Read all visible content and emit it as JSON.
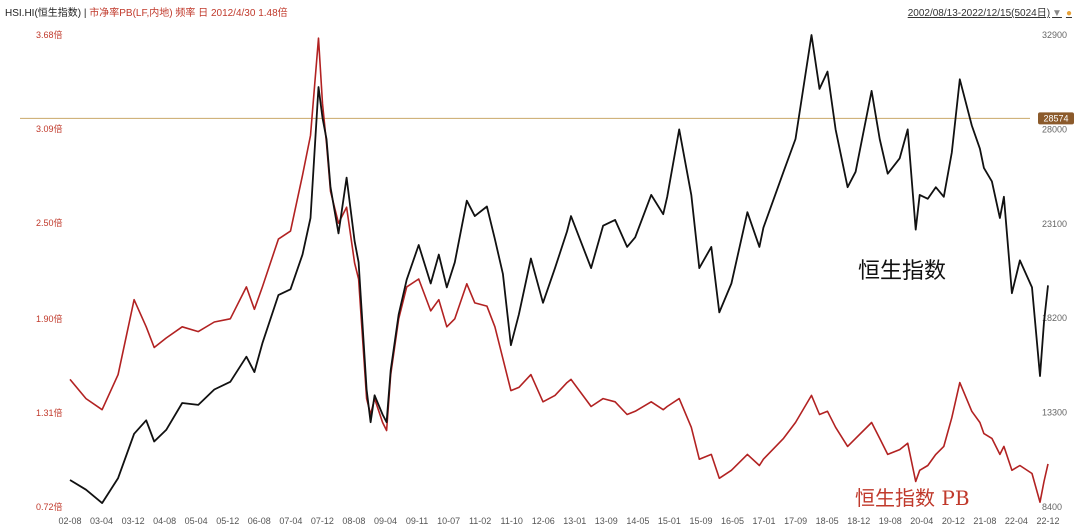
{
  "header": {
    "ticker": "HSI.HI(恒生指数)",
    "separator": " | ",
    "indicator": "市净率PB(LF,内地) 频率 日 2012/4/30 1.48倍",
    "date_range": "2002/08/13-2022/12/15(5024日)",
    "menu_icon": "triangle-down-icon",
    "status_icon": "dot-icon"
  },
  "chart_data": {
    "type": "line",
    "title": "",
    "x_tick_labels": [
      "02-08",
      "03-04",
      "03-12",
      "04-08",
      "05-04",
      "05-12",
      "06-08",
      "07-04",
      "07-12",
      "08-08",
      "09-04",
      "09-11",
      "10-07",
      "11-02",
      "11-10",
      "12-06",
      "13-01",
      "13-09",
      "14-05",
      "15-01",
      "15-09",
      "16-05",
      "17-01",
      "17-09",
      "18-05",
      "18-12",
      "19-08",
      "20-04",
      "20-12",
      "21-08",
      "22-04",
      "22-12"
    ],
    "left_axis": {
      "ticks": [
        "3.68倍",
        "3.09倍",
        "2.50倍",
        "1.90倍",
        "1.31倍",
        "0.72倍"
      ],
      "range": [
        0.72,
        3.68
      ]
    },
    "right_axis": {
      "ticks": [
        "32900",
        "28000",
        "23100",
        "18200",
        "13300",
        "8400"
      ],
      "range": [
        8400,
        32900
      ]
    },
    "reference_line": {
      "value": 28574,
      "label": "28574"
    },
    "series": [
      {
        "name": "恒生指数",
        "axis": "right",
        "color": "#111111",
        "points": [
          [
            "02-08",
            9800
          ],
          [
            "02-12",
            9300
          ],
          [
            "03-04",
            8600
          ],
          [
            "03-08",
            9900
          ],
          [
            "03-12",
            12200
          ],
          [
            "04-03",
            12900
          ],
          [
            "04-05",
            11800
          ],
          [
            "04-08",
            12400
          ],
          [
            "04-12",
            13800
          ],
          [
            "05-04",
            13700
          ],
          [
            "05-08",
            14500
          ],
          [
            "05-12",
            14900
          ],
          [
            "06-04",
            16200
          ],
          [
            "06-06",
            15400
          ],
          [
            "06-08",
            16900
          ],
          [
            "06-12",
            19400
          ],
          [
            "07-03",
            19700
          ],
          [
            "07-06",
            21500
          ],
          [
            "07-08",
            23400
          ],
          [
            "07-10",
            30200
          ],
          [
            "07-11",
            28600
          ],
          [
            "07-12",
            27500
          ],
          [
            "08-01",
            25000
          ],
          [
            "08-03",
            22600
          ],
          [
            "08-05",
            25500
          ],
          [
            "08-07",
            22200
          ],
          [
            "08-08",
            21100
          ],
          [
            "08-10",
            14500
          ],
          [
            "08-11",
            12800
          ],
          [
            "08-12",
            14200
          ],
          [
            "09-02",
            13200
          ],
          [
            "09-03",
            12800
          ],
          [
            "09-04",
            15500
          ],
          [
            "09-06",
            18400
          ],
          [
            "09-08",
            20200
          ],
          [
            "09-11",
            22000
          ],
          [
            "10-02",
            20000
          ],
          [
            "10-04",
            21500
          ],
          [
            "10-06",
            19800
          ],
          [
            "10-08",
            21100
          ],
          [
            "10-11",
            24300
          ],
          [
            "11-01",
            23500
          ],
          [
            "11-04",
            24000
          ],
          [
            "11-06",
            22300
          ],
          [
            "11-08",
            20500
          ],
          [
            "11-10",
            16800
          ],
          [
            "11-12",
            18400
          ],
          [
            "12-03",
            21300
          ],
          [
            "12-06",
            19000
          ],
          [
            "12-09",
            20800
          ],
          [
            "12-12",
            22700
          ],
          [
            "13-01",
            23500
          ],
          [
            "13-06",
            20800
          ],
          [
            "13-09",
            23000
          ],
          [
            "13-12",
            23300
          ],
          [
            "14-03",
            21900
          ],
          [
            "14-05",
            22400
          ],
          [
            "14-09",
            24600
          ],
          [
            "14-12",
            23600
          ],
          [
            "15-01",
            24500
          ],
          [
            "15-04",
            28000
          ],
          [
            "15-07",
            24600
          ],
          [
            "15-09",
            20800
          ],
          [
            "15-12",
            21900
          ],
          [
            "16-02",
            18500
          ],
          [
            "16-05",
            20000
          ],
          [
            "16-09",
            23700
          ],
          [
            "16-12",
            21900
          ],
          [
            "17-01",
            22900
          ],
          [
            "17-06",
            25800
          ],
          [
            "17-09",
            27500
          ],
          [
            "18-01",
            32900
          ],
          [
            "18-03",
            30100
          ],
          [
            "18-05",
            31000
          ],
          [
            "18-07",
            28000
          ],
          [
            "18-10",
            25000
          ],
          [
            "18-12",
            25800
          ],
          [
            "19-04",
            30000
          ],
          [
            "19-06",
            27500
          ],
          [
            "19-08",
            25700
          ],
          [
            "19-11",
            26500
          ],
          [
            "20-01",
            28000
          ],
          [
            "20-03",
            22800
          ],
          [
            "20-04",
            24600
          ],
          [
            "20-06",
            24400
          ],
          [
            "20-08",
            25000
          ],
          [
            "20-10",
            24500
          ],
          [
            "20-12",
            26800
          ],
          [
            "21-02",
            30600
          ],
          [
            "21-05",
            28200
          ],
          [
            "21-07",
            27000
          ],
          [
            "21-08",
            26000
          ],
          [
            "21-10",
            25300
          ],
          [
            "21-12",
            23400
          ],
          [
            "22-01",
            24500
          ],
          [
            "22-03",
            19500
          ],
          [
            "22-05",
            21200
          ],
          [
            "22-08",
            19800
          ],
          [
            "22-10",
            15200
          ],
          [
            "22-11",
            18000
          ],
          [
            "22-12",
            19900
          ]
        ]
      },
      {
        "name": "恒生指数 PB",
        "axis": "left",
        "color": "#b22222",
        "points": [
          [
            "02-08",
            1.52
          ],
          [
            "02-12",
            1.4
          ],
          [
            "03-04",
            1.33
          ],
          [
            "03-08",
            1.55
          ],
          [
            "03-12",
            2.02
          ],
          [
            "04-03",
            1.85
          ],
          [
            "04-05",
            1.72
          ],
          [
            "04-08",
            1.78
          ],
          [
            "04-12",
            1.85
          ],
          [
            "05-04",
            1.82
          ],
          [
            "05-08",
            1.88
          ],
          [
            "05-12",
            1.9
          ],
          [
            "06-04",
            2.1
          ],
          [
            "06-06",
            1.96
          ],
          [
            "06-08",
            2.1
          ],
          [
            "06-12",
            2.4
          ],
          [
            "07-03",
            2.45
          ],
          [
            "07-06",
            2.8
          ],
          [
            "07-08",
            3.05
          ],
          [
            "07-10",
            3.66
          ],
          [
            "07-11",
            3.25
          ],
          [
            "07-12",
            3.0
          ],
          [
            "08-01",
            2.7
          ],
          [
            "08-03",
            2.5
          ],
          [
            "08-05",
            2.6
          ],
          [
            "08-07",
            2.25
          ],
          [
            "08-08",
            2.15
          ],
          [
            "08-10",
            1.4
          ],
          [
            "08-11",
            1.3
          ],
          [
            "08-12",
            1.4
          ],
          [
            "09-02",
            1.25
          ],
          [
            "09-03",
            1.2
          ],
          [
            "09-04",
            1.55
          ],
          [
            "09-06",
            1.9
          ],
          [
            "09-08",
            2.1
          ],
          [
            "09-11",
            2.15
          ],
          [
            "10-02",
            1.95
          ],
          [
            "10-04",
            2.02
          ],
          [
            "10-06",
            1.85
          ],
          [
            "10-08",
            1.9
          ],
          [
            "10-11",
            2.12
          ],
          [
            "11-01",
            2.0
          ],
          [
            "11-04",
            1.98
          ],
          [
            "11-06",
            1.85
          ],
          [
            "11-08",
            1.65
          ],
          [
            "11-10",
            1.45
          ],
          [
            "11-12",
            1.47
          ],
          [
            "12-03",
            1.55
          ],
          [
            "12-06",
            1.38
          ],
          [
            "12-09",
            1.42
          ],
          [
            "12-12",
            1.5
          ],
          [
            "13-01",
            1.52
          ],
          [
            "13-06",
            1.35
          ],
          [
            "13-09",
            1.4
          ],
          [
            "13-12",
            1.38
          ],
          [
            "14-03",
            1.3
          ],
          [
            "14-05",
            1.32
          ],
          [
            "14-09",
            1.38
          ],
          [
            "14-12",
            1.33
          ],
          [
            "15-01",
            1.35
          ],
          [
            "15-04",
            1.4
          ],
          [
            "15-07",
            1.22
          ],
          [
            "15-09",
            1.02
          ],
          [
            "15-12",
            1.05
          ],
          [
            "16-02",
            0.9
          ],
          [
            "16-05",
            0.95
          ],
          [
            "16-09",
            1.05
          ],
          [
            "16-12",
            0.98
          ],
          [
            "17-01",
            1.02
          ],
          [
            "17-06",
            1.15
          ],
          [
            "17-09",
            1.25
          ],
          [
            "18-01",
            1.42
          ],
          [
            "18-03",
            1.3
          ],
          [
            "18-05",
            1.32
          ],
          [
            "18-07",
            1.22
          ],
          [
            "18-10",
            1.1
          ],
          [
            "18-12",
            1.15
          ],
          [
            "19-04",
            1.25
          ],
          [
            "19-06",
            1.15
          ],
          [
            "19-08",
            1.05
          ],
          [
            "19-11",
            1.08
          ],
          [
            "20-01",
            1.12
          ],
          [
            "20-03",
            0.88
          ],
          [
            "20-04",
            0.95
          ],
          [
            "20-06",
            0.98
          ],
          [
            "20-08",
            1.05
          ],
          [
            "20-10",
            1.1
          ],
          [
            "20-12",
            1.28
          ],
          [
            "21-02",
            1.5
          ],
          [
            "21-05",
            1.32
          ],
          [
            "21-07",
            1.25
          ],
          [
            "21-08",
            1.18
          ],
          [
            "21-10",
            1.15
          ],
          [
            "21-12",
            1.05
          ],
          [
            "22-01",
            1.1
          ],
          [
            "22-03",
            0.95
          ],
          [
            "22-05",
            0.98
          ],
          [
            "22-08",
            0.93
          ],
          [
            "22-10",
            0.75
          ],
          [
            "22-11",
            0.88
          ],
          [
            "22-12",
            0.99
          ]
        ]
      }
    ],
    "annotations": [
      {
        "text": "恒生指数",
        "color": "#111111"
      },
      {
        "text": "恒生指数 PB",
        "color": "#c0392b"
      }
    ],
    "grid": false,
    "legend": "none"
  }
}
